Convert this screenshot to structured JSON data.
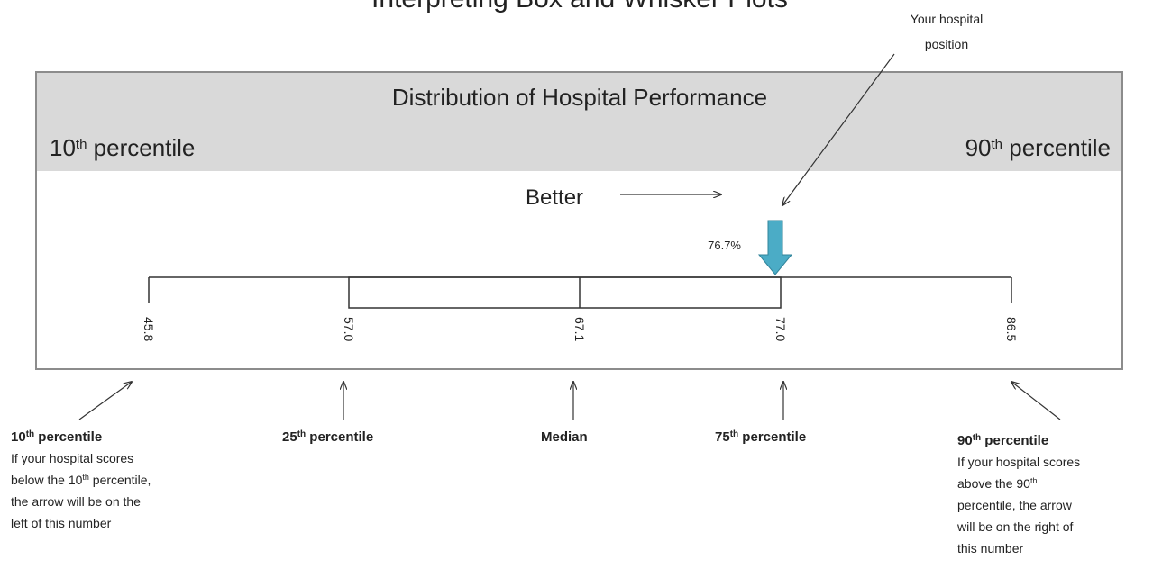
{
  "title": "Interpreting Box and Whisker Plots",
  "header": {
    "title": "Distribution of Hospital Performance",
    "left": [
      "10",
      "th",
      " percentile"
    ],
    "right": [
      "90",
      "th",
      " percentile"
    ]
  },
  "better": "Better",
  "pointer": {
    "lines": [
      "Your hospital",
      "position"
    ],
    "value": "76.7%"
  },
  "markers": [
    {
      "value": "45.8",
      "label": [
        "10",
        "th",
        " percentile"
      ],
      "note": [
        [
          "If your hospital scores"
        ],
        [
          "below the 10",
          "th",
          " percentile,"
        ],
        [
          "the arrow will be on the"
        ],
        [
          "left of this number"
        ]
      ]
    },
    {
      "value": "57.0",
      "label": [
        "25",
        "th",
        " percentile"
      ],
      "note": []
    },
    {
      "value": "67.1",
      "label": [
        "Median"
      ],
      "note": []
    },
    {
      "value": "77.0",
      "label": [
        "75",
        "th",
        " percentile"
      ],
      "note": []
    },
    {
      "value": "86.5",
      "label": [
        "90",
        "th",
        " percentile"
      ],
      "note": [
        [
          "If your hospital scores"
        ],
        [
          "above the 90",
          "th"
        ],
        [
          "percentile, the arrow"
        ],
        [
          "will be on the right of"
        ],
        [
          "this number"
        ]
      ]
    }
  ]
}
